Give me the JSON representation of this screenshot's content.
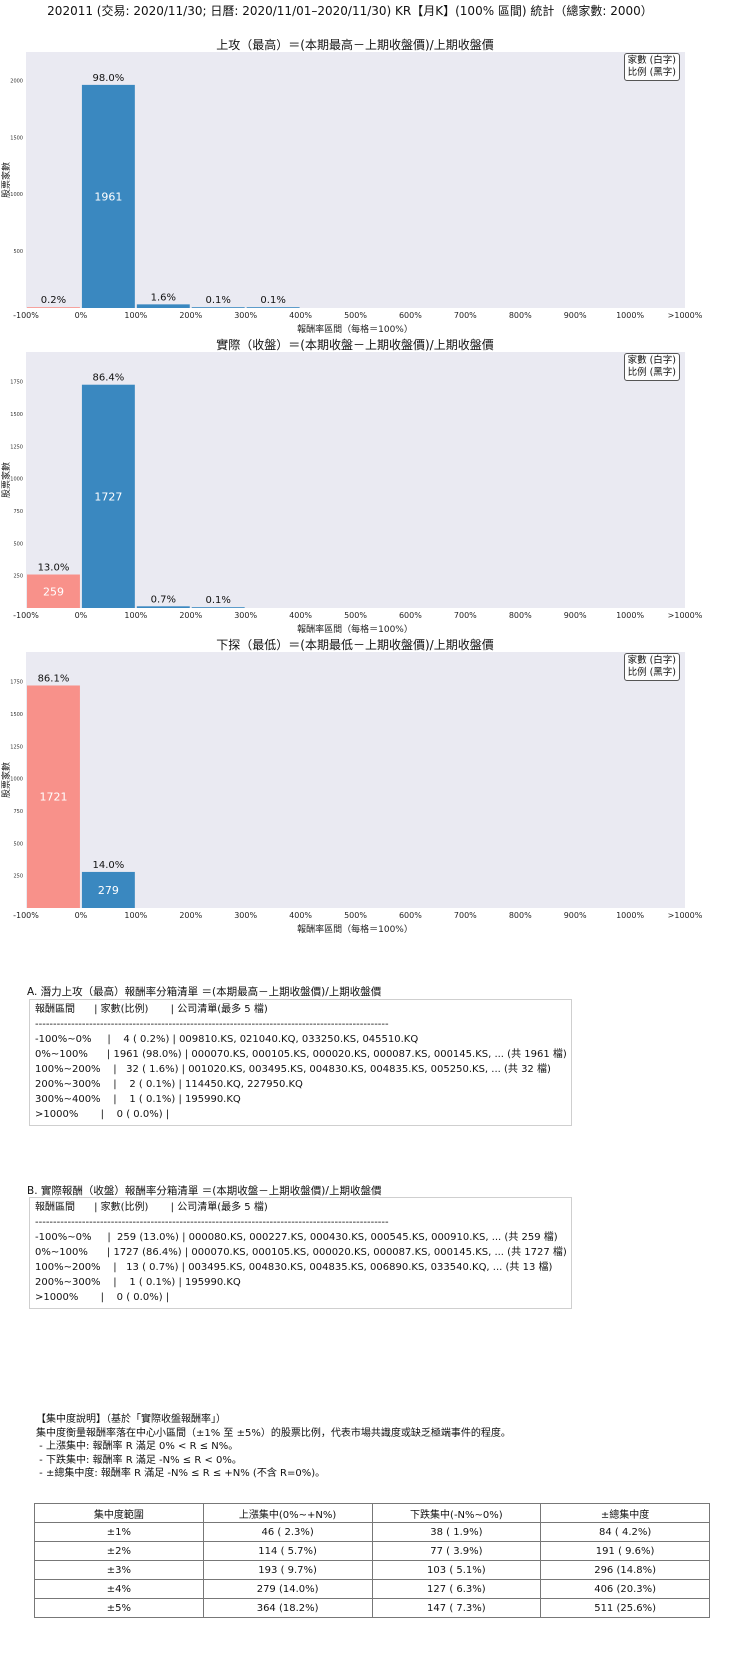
{
  "page_title": "202011 (交易: 2020/11/30; 日曆: 2020/11/01–2020/11/30) KR【月K】(100% 區間) 統計（總家數: 2000）",
  "legend": {
    "line1": "家數 (白字)",
    "line2": "比例 (黑字)"
  },
  "colors": {
    "positive": "#3a88c0",
    "negative": "#f8918a",
    "plot_bg": "#eaeaf2"
  },
  "chart_data": [
    {
      "type": "bar",
      "title": "上攻（最高）＝(本期最高－上期收盤價)/上期收盤價",
      "xlabel": "報酬率區間（每格＝100%）",
      "ylabel": "股票家數",
      "x_ticks": [
        "-100%",
        "0%",
        "100%",
        "200%",
        "300%",
        "400%",
        "500%",
        "600%",
        "700%",
        "800%",
        "900%",
        "1000%",
        ">1000%"
      ],
      "y_ticks": [
        500,
        1000,
        1500,
        2000
      ],
      "ylim": [
        0,
        2250
      ],
      "bars": [
        {
          "bin": 0,
          "value": 4,
          "pct": "0.2%",
          "color": "negative"
        },
        {
          "bin": 1,
          "value": 1961,
          "pct": "98.0%",
          "color": "positive"
        },
        {
          "bin": 2,
          "value": 32,
          "pct": "1.6%",
          "color": "positive"
        },
        {
          "bin": 3,
          "value": 2,
          "pct": "0.1%",
          "color": "positive"
        },
        {
          "bin": 4,
          "value": 1,
          "pct": "0.1%",
          "color": "positive"
        }
      ],
      "inner_labels": [
        "",
        "1961",
        "",
        "",
        ""
      ]
    },
    {
      "type": "bar",
      "title": "實際（收盤）＝(本期收盤－上期收盤價)/上期收盤價",
      "xlabel": "報酬率區間（每格＝100%）",
      "ylabel": "股票家數",
      "x_ticks": [
        "-100%",
        "0%",
        "100%",
        "200%",
        "300%",
        "400%",
        "500%",
        "600%",
        "700%",
        "800%",
        "900%",
        "1000%",
        ">1000%"
      ],
      "y_ticks": [
        250,
        500,
        750,
        1000,
        1250,
        1500,
        1750
      ],
      "ylim": [
        0,
        1980
      ],
      "bars": [
        {
          "bin": 0,
          "value": 259,
          "pct": "13.0%",
          "color": "negative"
        },
        {
          "bin": 1,
          "value": 1727,
          "pct": "86.4%",
          "color": "positive"
        },
        {
          "bin": 2,
          "value": 13,
          "pct": "0.7%",
          "color": "positive"
        },
        {
          "bin": 3,
          "value": 1,
          "pct": "0.1%",
          "color": "positive"
        }
      ],
      "inner_labels": [
        "259",
        "1727",
        "",
        ""
      ]
    },
    {
      "type": "bar",
      "title": "下探（最低）＝(本期最低－上期收盤價)/上期收盤價",
      "xlabel": "報酬率區間（每格＝100%）",
      "ylabel": "股票家數",
      "x_ticks": [
        "-100%",
        "0%",
        "100%",
        "200%",
        "300%",
        "400%",
        "500%",
        "600%",
        "700%",
        "800%",
        "900%",
        "1000%",
        ">1000%"
      ],
      "y_ticks": [
        250,
        500,
        750,
        1000,
        1250,
        1500,
        1750
      ],
      "ylim": [
        0,
        1980
      ],
      "bars": [
        {
          "bin": 0,
          "value": 1721,
          "pct": "86.1%",
          "color": "negative"
        },
        {
          "bin": 1,
          "value": 279,
          "pct": "14.0%",
          "color": "positive"
        }
      ],
      "inner_labels": [
        "1721",
        "279"
      ]
    }
  ],
  "section_a": {
    "title": "A. 潛力上攻（最高）報酬率分箱清單 ＝(本期最高－上期收盤價)/上期收盤價",
    "lines": [
      "報酬區間      | 家數(比例)       | 公司清單(最多 5 檔)",
      "--------------------------------------------------------------------------------------------------",
      "-100%~0%     |    4 ( 0.2%) | 009810.KS, 021040.KQ, 033250.KS, 045510.KQ",
      "0%~100%      | 1961 (98.0%) | 000070.KS, 000105.KS, 000020.KS, 000087.KS, 000145.KS, ... (共 1961 檔)",
      "100%~200%    |   32 ( 1.6%) | 001020.KS, 003495.KS, 004830.KS, 004835.KS, 005250.KS, ... (共 32 檔)",
      "200%~300%    |    2 ( 0.1%) | 114450.KQ, 227950.KQ",
      "300%~400%    |    1 ( 0.1%) | 195990.KQ",
      ">1000%       |    0 ( 0.0%) |"
    ]
  },
  "section_b": {
    "title": "B. 實際報酬（收盤）報酬率分箱清單 ＝(本期收盤－上期收盤價)/上期收盤價",
    "lines": [
      "報酬區間      | 家數(比例)       | 公司清單(最多 5 檔)",
      "--------------------------------------------------------------------------------------------------",
      "-100%~0%     |  259 (13.0%) | 000080.KS, 000227.KS, 000430.KS, 000545.KS, 000910.KS, ... (共 259 檔)",
      "0%~100%      | 1727 (86.4%) | 000070.KS, 000105.KS, 000020.KS, 000087.KS, 000145.KS, ... (共 1727 檔)",
      "100%~200%    |   13 ( 0.7%) | 003495.KS, 004830.KS, 004835.KS, 006890.KS, 033540.KQ, ... (共 13 檔)",
      "200%~300%    |    1 ( 0.1%) | 195990.KQ",
      ">1000%       |    0 ( 0.0%) |"
    ]
  },
  "concentration": {
    "heading": "【集中度說明】（基於「實際收盤報酬率」）",
    "desc": "集中度衡量報酬率落在中心小區間（±1% 至 ±5%）的股票比例，代表市場共識度或缺乏極端事件的程度。",
    "bullets": [
      " - 上漲集中: 報酬率 R 滿足 0% < R ≤ N%。",
      " - 下跌集中: 報酬率 R 滿足 -N% ≤ R < 0%。",
      " - ±總集中度: 報酬率 R 滿足 -N% ≤ R ≤ +N% (不含 R=0%)。"
    ],
    "headers": [
      "集中度範圍",
      "上漲集中(0%~+N%)",
      "下跌集中(-N%~0%)",
      "±總集中度"
    ],
    "rows": [
      [
        "±1%",
        "46 ( 2.3%)",
        "38 ( 1.9%)",
        "84 ( 4.2%)"
      ],
      [
        "±2%",
        "114 ( 5.7%)",
        "77 ( 3.9%)",
        "191 ( 9.6%)"
      ],
      [
        "±3%",
        "193 ( 9.7%)",
        "103 ( 5.1%)",
        "296 (14.8%)"
      ],
      [
        "±4%",
        "279 (14.0%)",
        "127 ( 6.3%)",
        "406 (20.3%)"
      ],
      [
        "±5%",
        "364 (18.2%)",
        "147 ( 7.3%)",
        "511 (25.6%)"
      ]
    ]
  }
}
